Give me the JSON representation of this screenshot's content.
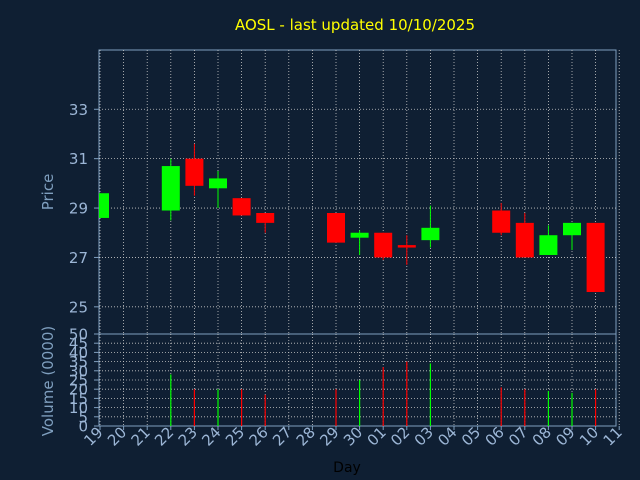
{
  "chart_data": [
    {
      "type": "candlestick",
      "title": "AOSL - last updated 10/10/2025",
      "ylabel": "Price",
      "ylim": [
        23.9,
        35.4
      ],
      "yticks": [
        25,
        27,
        29,
        31,
        33
      ],
      "grid": true,
      "categories": [
        "19",
        "20",
        "21",
        "22",
        "23",
        "24",
        "25",
        "26",
        "27",
        "28",
        "29",
        "30",
        "01",
        "02",
        "03",
        "04",
        "05",
        "06",
        "07",
        "08",
        "09",
        "10",
        "11"
      ],
      "candles": [
        {
          "x": "19",
          "open": 28.6,
          "high": 29.6,
          "low": 28.6,
          "close": 29.6
        },
        {
          "x": "22",
          "open": 28.9,
          "high": 31.0,
          "low": 28.5,
          "close": 30.7
        },
        {
          "x": "23",
          "open": 31.0,
          "high": 31.6,
          "low": 29.5,
          "close": 29.9
        },
        {
          "x": "24",
          "open": 29.8,
          "high": 30.5,
          "low": 29.0,
          "close": 30.2
        },
        {
          "x": "25",
          "open": 29.4,
          "high": 29.4,
          "low": 28.7,
          "close": 28.7
        },
        {
          "x": "26",
          "open": 28.8,
          "high": 28.8,
          "low": 28.0,
          "close": 28.4
        },
        {
          "x": "29",
          "open": 28.8,
          "high": 28.8,
          "low": 27.6,
          "close": 27.6
        },
        {
          "x": "30",
          "open": 27.8,
          "high": 28.1,
          "low": 27.1,
          "close": 28.0
        },
        {
          "x": "01",
          "open": 28.0,
          "high": 28.0,
          "low": 26.9,
          "close": 27.0
        },
        {
          "x": "02",
          "open": 27.5,
          "high": 27.9,
          "low": 26.7,
          "close": 27.4
        },
        {
          "x": "03",
          "open": 27.7,
          "high": 29.1,
          "low": 27.4,
          "close": 28.2
        },
        {
          "x": "06",
          "open": 28.9,
          "high": 29.2,
          "low": 27.9,
          "close": 28.0
        },
        {
          "x": "07",
          "open": 28.4,
          "high": 28.8,
          "low": 27.0,
          "close": 27.0
        },
        {
          "x": "08",
          "open": 27.1,
          "high": 28.3,
          "low": 27.1,
          "close": 27.9
        },
        {
          "x": "09",
          "open": 27.9,
          "high": 28.4,
          "low": 27.3,
          "close": 28.4
        },
        {
          "x": "10",
          "open": 28.4,
          "high": 28.4,
          "low": 25.6,
          "close": 25.6
        }
      ],
      "colors": {
        "up": "#00ff00",
        "down": "#ff0000",
        "background": "#0f1f33",
        "grid": "#c8c8c8",
        "axis": "#7f9fbf",
        "title": "#ffff00",
        "tick": "#9cb6d6"
      }
    },
    {
      "type": "bar",
      "xlabel": "Day",
      "ylabel": "Volume (0000)",
      "ylim": [
        0,
        50
      ],
      "yticks": [
        0,
        5,
        10,
        15,
        20,
        25,
        30,
        35,
        40,
        45,
        50
      ],
      "grid": true,
      "categories": [
        "19",
        "20",
        "21",
        "22",
        "23",
        "24",
        "25",
        "26",
        "27",
        "28",
        "29",
        "30",
        "01",
        "02",
        "03",
        "04",
        "05",
        "06",
        "07",
        "08",
        "09",
        "10",
        "11"
      ],
      "bars": [
        {
          "x": "22",
          "value": 28,
          "dir": "up"
        },
        {
          "x": "23",
          "value": 20,
          "dir": "down"
        },
        {
          "x": "24",
          "value": 20,
          "dir": "up"
        },
        {
          "x": "25",
          "value": 20,
          "dir": "down"
        },
        {
          "x": "26",
          "value": 17,
          "dir": "down"
        },
        {
          "x": "29",
          "value": 20,
          "dir": "down"
        },
        {
          "x": "30",
          "value": 25,
          "dir": "up"
        },
        {
          "x": "01",
          "value": 32,
          "dir": "down"
        },
        {
          "x": "02",
          "value": 35,
          "dir": "down"
        },
        {
          "x": "03",
          "value": 34,
          "dir": "up"
        },
        {
          "x": "06",
          "value": 21,
          "dir": "down"
        },
        {
          "x": "07",
          "value": 20,
          "dir": "down"
        },
        {
          "x": "08",
          "value": 19,
          "dir": "up"
        },
        {
          "x": "09",
          "value": 18,
          "dir": "up"
        },
        {
          "x": "10",
          "value": 20,
          "dir": "down"
        }
      ]
    }
  ]
}
